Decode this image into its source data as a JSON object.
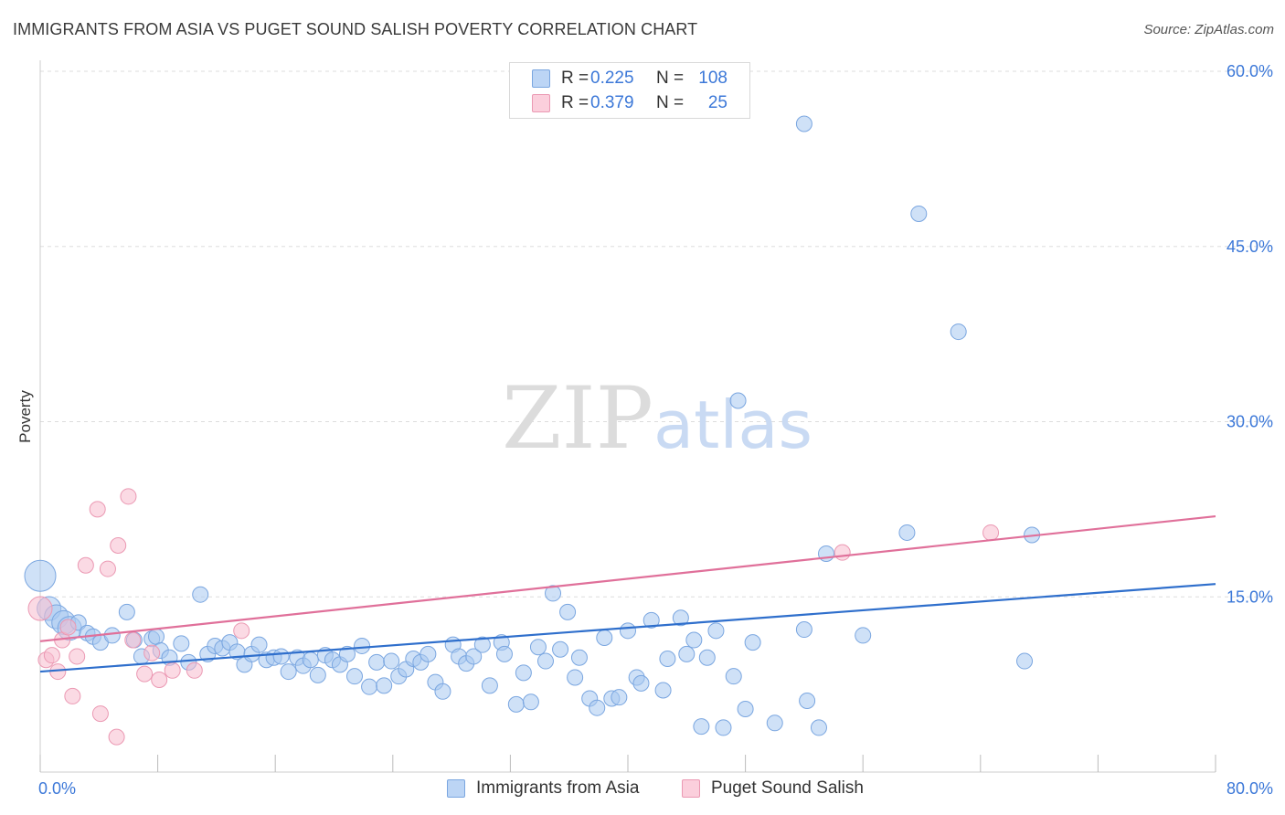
{
  "title": "IMMIGRANTS FROM ASIA VS PUGET SOUND SALISH POVERTY CORRELATION CHART",
  "source": "Source: ZipAtlas.com",
  "watermark": {
    "zip": "ZIP",
    "atlas": "atlas"
  },
  "legend": {
    "rows": [
      {
        "r_label": "R =",
        "r_value": "0.225",
        "n_label": "N =",
        "n_value": "108"
      },
      {
        "r_label": "R =",
        "r_value": "0.379",
        "n_label": "N =",
        "n_value": "25"
      }
    ]
  },
  "bottom_legend": [
    "Immigrants from Asia",
    "Puget Sound Salish"
  ],
  "colors": {
    "blue_fill": "#a8c8f0",
    "blue_stroke": "#7aa6e0",
    "blue_line": "#2f6fcc",
    "pink_fill": "#f8bccd",
    "pink_stroke": "#eb99b3",
    "pink_line": "#e0709a",
    "tick_text": "#3c78d8",
    "grid": "#dddddd"
  },
  "chart_data": {
    "type": "scatter",
    "title": "IMMIGRANTS FROM ASIA VS PUGET SOUND SALISH POVERTY CORRELATION CHART",
    "xlabel": "",
    "ylabel": "Poverty",
    "xlim": [
      0,
      80
    ],
    "ylim": [
      0,
      60
    ],
    "x_tick_labels": [
      "0.0%",
      "80.0%"
    ],
    "y_ticks": [
      15,
      30,
      45,
      60
    ],
    "y_tick_labels": [
      "15.0%",
      "30.0%",
      "45.0%",
      "60.0%"
    ],
    "grid": true,
    "series": [
      {
        "name": "Immigrants from Asia",
        "color": "blue",
        "trend": {
          "x": [
            0,
            80
          ],
          "y": [
            8.6,
            16.1
          ]
        },
        "points": [
          {
            "x": 0.0,
            "y": 16.8,
            "s": 3
          },
          {
            "x": 0.6,
            "y": 14.0,
            "s": 2
          },
          {
            "x": 1.1,
            "y": 13.3,
            "s": 2
          },
          {
            "x": 1.6,
            "y": 12.8,
            "s": 2
          },
          {
            "x": 2.0,
            "y": 12.3,
            "s": 2
          },
          {
            "x": 2.6,
            "y": 12.8,
            "s": 1
          },
          {
            "x": 3.2,
            "y": 11.9,
            "s": 1
          },
          {
            "x": 3.6,
            "y": 11.6,
            "s": 1
          },
          {
            "x": 4.1,
            "y": 11.1,
            "s": 1
          },
          {
            "x": 4.9,
            "y": 11.7,
            "s": 1
          },
          {
            "x": 5.9,
            "y": 13.7,
            "s": 1
          },
          {
            "x": 6.4,
            "y": 11.3,
            "s": 1
          },
          {
            "x": 6.9,
            "y": 9.9,
            "s": 1
          },
          {
            "x": 7.6,
            "y": 11.4,
            "s": 1
          },
          {
            "x": 7.9,
            "y": 11.6,
            "s": 1
          },
          {
            "x": 8.2,
            "y": 10.4,
            "s": 1
          },
          {
            "x": 8.8,
            "y": 9.8,
            "s": 1
          },
          {
            "x": 9.6,
            "y": 11.0,
            "s": 1
          },
          {
            "x": 10.1,
            "y": 9.4,
            "s": 1
          },
          {
            "x": 10.9,
            "y": 15.2,
            "s": 1
          },
          {
            "x": 11.4,
            "y": 10.1,
            "s": 1
          },
          {
            "x": 11.9,
            "y": 10.8,
            "s": 1
          },
          {
            "x": 12.4,
            "y": 10.6,
            "s": 1
          },
          {
            "x": 12.9,
            "y": 11.1,
            "s": 1
          },
          {
            "x": 13.4,
            "y": 10.3,
            "s": 1
          },
          {
            "x": 13.9,
            "y": 9.2,
            "s": 1
          },
          {
            "x": 14.4,
            "y": 10.1,
            "s": 1
          },
          {
            "x": 14.9,
            "y": 10.9,
            "s": 1
          },
          {
            "x": 15.4,
            "y": 9.6,
            "s": 1
          },
          {
            "x": 15.9,
            "y": 9.8,
            "s": 1
          },
          {
            "x": 16.4,
            "y": 9.9,
            "s": 1
          },
          {
            "x": 16.9,
            "y": 8.6,
            "s": 1
          },
          {
            "x": 17.5,
            "y": 9.8,
            "s": 1
          },
          {
            "x": 17.9,
            "y": 9.1,
            "s": 1
          },
          {
            "x": 18.4,
            "y": 9.6,
            "s": 1
          },
          {
            "x": 18.9,
            "y": 8.3,
            "s": 1
          },
          {
            "x": 19.4,
            "y": 10.0,
            "s": 1
          },
          {
            "x": 19.9,
            "y": 9.6,
            "s": 1
          },
          {
            "x": 20.4,
            "y": 9.2,
            "s": 1
          },
          {
            "x": 20.9,
            "y": 10.1,
            "s": 1
          },
          {
            "x": 21.4,
            "y": 8.2,
            "s": 1
          },
          {
            "x": 21.9,
            "y": 10.8,
            "s": 1
          },
          {
            "x": 22.4,
            "y": 7.3,
            "s": 1
          },
          {
            "x": 22.9,
            "y": 9.4,
            "s": 1
          },
          {
            "x": 23.4,
            "y": 7.4,
            "s": 1
          },
          {
            "x": 23.9,
            "y": 9.5,
            "s": 1
          },
          {
            "x": 24.4,
            "y": 8.2,
            "s": 1
          },
          {
            "x": 24.9,
            "y": 8.8,
            "s": 1
          },
          {
            "x": 25.4,
            "y": 9.7,
            "s": 1
          },
          {
            "x": 25.9,
            "y": 9.4,
            "s": 1
          },
          {
            "x": 26.4,
            "y": 10.1,
            "s": 1
          },
          {
            "x": 26.9,
            "y": 7.7,
            "s": 1
          },
          {
            "x": 27.4,
            "y": 6.9,
            "s": 1
          },
          {
            "x": 28.1,
            "y": 10.9,
            "s": 1
          },
          {
            "x": 28.5,
            "y": 9.9,
            "s": 1
          },
          {
            "x": 29.0,
            "y": 9.3,
            "s": 1
          },
          {
            "x": 29.5,
            "y": 9.9,
            "s": 1
          },
          {
            "x": 30.1,
            "y": 10.9,
            "s": 1
          },
          {
            "x": 30.6,
            "y": 7.4,
            "s": 1
          },
          {
            "x": 31.4,
            "y": 11.1,
            "s": 1
          },
          {
            "x": 31.6,
            "y": 10.1,
            "s": 1
          },
          {
            "x": 32.4,
            "y": 5.8,
            "s": 1
          },
          {
            "x": 32.9,
            "y": 8.5,
            "s": 1
          },
          {
            "x": 33.4,
            "y": 6.0,
            "s": 1
          },
          {
            "x": 33.9,
            "y": 10.7,
            "s": 1
          },
          {
            "x": 34.4,
            "y": 9.5,
            "s": 1
          },
          {
            "x": 34.9,
            "y": 15.3,
            "s": 1
          },
          {
            "x": 35.4,
            "y": 10.5,
            "s": 1
          },
          {
            "x": 35.9,
            "y": 13.7,
            "s": 1
          },
          {
            "x": 36.4,
            "y": 8.1,
            "s": 1
          },
          {
            "x": 36.7,
            "y": 9.8,
            "s": 1
          },
          {
            "x": 37.4,
            "y": 6.3,
            "s": 1
          },
          {
            "x": 37.9,
            "y": 5.5,
            "s": 1
          },
          {
            "x": 38.4,
            "y": 11.5,
            "s": 1
          },
          {
            "x": 38.9,
            "y": 6.3,
            "s": 1
          },
          {
            "x": 39.4,
            "y": 6.4,
            "s": 1
          },
          {
            "x": 40.0,
            "y": 12.1,
            "s": 1
          },
          {
            "x": 40.6,
            "y": 8.1,
            "s": 1
          },
          {
            "x": 40.9,
            "y": 7.6,
            "s": 1
          },
          {
            "x": 41.6,
            "y": 13.0,
            "s": 1
          },
          {
            "x": 42.4,
            "y": 7.0,
            "s": 1
          },
          {
            "x": 42.7,
            "y": 9.7,
            "s": 1
          },
          {
            "x": 43.6,
            "y": 13.2,
            "s": 1
          },
          {
            "x": 44.0,
            "y": 10.1,
            "s": 1
          },
          {
            "x": 44.5,
            "y": 11.3,
            "s": 1
          },
          {
            "x": 45.0,
            "y": 3.9,
            "s": 1
          },
          {
            "x": 45.4,
            "y": 9.8,
            "s": 1
          },
          {
            "x": 46.0,
            "y": 12.1,
            "s": 1
          },
          {
            "x": 46.5,
            "y": 3.8,
            "s": 1
          },
          {
            "x": 47.2,
            "y": 8.2,
            "s": 1
          },
          {
            "x": 47.5,
            "y": 31.8,
            "s": 1
          },
          {
            "x": 48.0,
            "y": 5.4,
            "s": 1
          },
          {
            "x": 48.5,
            "y": 11.1,
            "s": 1
          },
          {
            "x": 50.0,
            "y": 4.2,
            "s": 1
          },
          {
            "x": 52.0,
            "y": 55.5,
            "s": 1
          },
          {
            "x": 52.0,
            "y": 12.2,
            "s": 1
          },
          {
            "x": 52.2,
            "y": 6.1,
            "s": 1
          },
          {
            "x": 53.0,
            "y": 3.8,
            "s": 1
          },
          {
            "x": 53.5,
            "y": 18.7,
            "s": 1
          },
          {
            "x": 56.0,
            "y": 11.7,
            "s": 1
          },
          {
            "x": 59.0,
            "y": 20.5,
            "s": 1
          },
          {
            "x": 59.8,
            "y": 47.8,
            "s": 1
          },
          {
            "x": 62.5,
            "y": 37.7,
            "s": 1
          },
          {
            "x": 67.5,
            "y": 20.3,
            "s": 1
          },
          {
            "x": 67.0,
            "y": 9.5,
            "s": 1
          }
        ]
      },
      {
        "name": "Puget Sound Salish",
        "color": "pink",
        "trend": {
          "x": [
            0,
            80
          ],
          "y": [
            11.2,
            21.9
          ]
        },
        "points": [
          {
            "x": 0.0,
            "y": 14.0,
            "s": 2
          },
          {
            "x": 0.4,
            "y": 9.6,
            "s": 1
          },
          {
            "x": 0.8,
            "y": 10.0,
            "s": 1
          },
          {
            "x": 1.2,
            "y": 8.6,
            "s": 1
          },
          {
            "x": 1.5,
            "y": 11.3,
            "s": 1
          },
          {
            "x": 1.9,
            "y": 12.4,
            "s": 1
          },
          {
            "x": 2.2,
            "y": 6.5,
            "s": 1
          },
          {
            "x": 2.5,
            "y": 9.9,
            "s": 1
          },
          {
            "x": 3.1,
            "y": 17.7,
            "s": 1
          },
          {
            "x": 3.9,
            "y": 22.5,
            "s": 1
          },
          {
            "x": 4.1,
            "y": 5.0,
            "s": 1
          },
          {
            "x": 4.6,
            "y": 17.4,
            "s": 1
          },
          {
            "x": 5.2,
            "y": 3.0,
            "s": 1
          },
          {
            "x": 5.3,
            "y": 19.4,
            "s": 1
          },
          {
            "x": 6.0,
            "y": 23.6,
            "s": 1
          },
          {
            "x": 6.3,
            "y": 11.3,
            "s": 1
          },
          {
            "x": 7.1,
            "y": 8.4,
            "s": 1
          },
          {
            "x": 7.6,
            "y": 10.2,
            "s": 1
          },
          {
            "x": 8.1,
            "y": 7.9,
            "s": 1
          },
          {
            "x": 9.0,
            "y": 8.7,
            "s": 1
          },
          {
            "x": 10.5,
            "y": 8.7,
            "s": 1
          },
          {
            "x": 13.7,
            "y": 12.1,
            "s": 1
          },
          {
            "x": 54.6,
            "y": 18.8,
            "s": 1
          },
          {
            "x": 64.7,
            "y": 20.5,
            "s": 1
          }
        ]
      }
    ]
  }
}
